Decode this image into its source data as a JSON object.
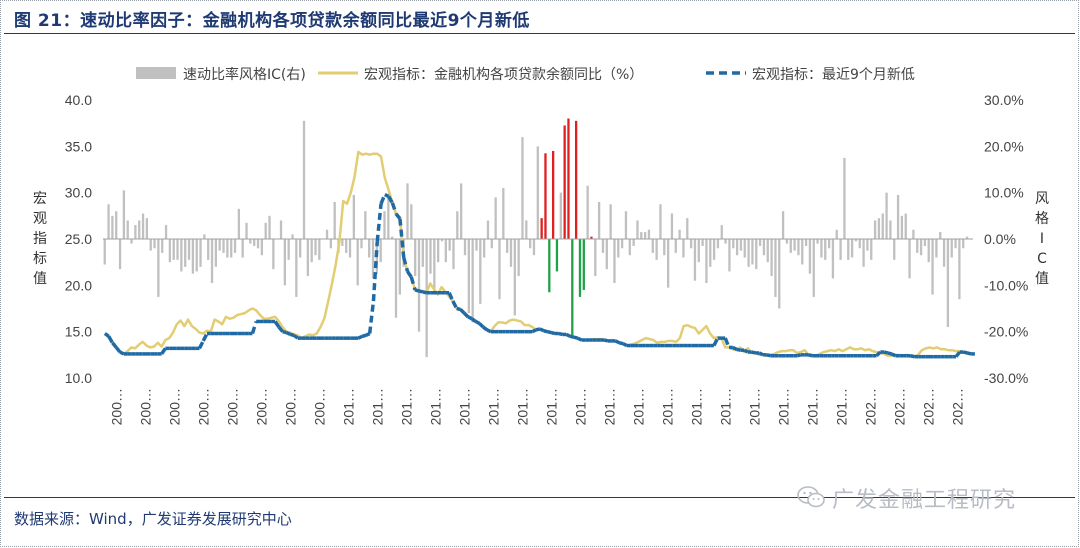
{
  "figure": {
    "title": "图 21：速动比率因子：金融机构各项贷款余额同比最近9个月新低",
    "source": "数据来源：Wind，广发证券发展研究中心",
    "watermark": "广发金融工程研究",
    "watermark_icon": "wechat-icon"
  },
  "chart_data": {
    "type": "bar+line",
    "legend_placement": "top",
    "grid": false,
    "left_axis": {
      "label": "宏观指标值",
      "min": 10.0,
      "max": 40.0,
      "ticks": [
        "10.0",
        "15.0",
        "20.0",
        "25.0",
        "30.0",
        "35.0",
        "40.0"
      ]
    },
    "right_axis": {
      "label": "风格IC值",
      "min": -30.0,
      "max": 30.0,
      "ticks": [
        "-30.0%",
        "-20.0%",
        "-10.0%",
        "0.0%",
        "10.0%",
        "20.0%",
        "30.0%"
      ]
    },
    "x_tick_labels": [
      "200…",
      "200…",
      "200…",
      "200…",
      "200…",
      "200…",
      "200…",
      "200…",
      "201…",
      "201…",
      "201…",
      "201…",
      "201…",
      "201…",
      "201…",
      "201…",
      "201…",
      "201…",
      "201…",
      "201…",
      "201…",
      "201…",
      "201…",
      "201…",
      "201…",
      "201…",
      "202…",
      "202…",
      "202…",
      "202…"
    ],
    "colors": {
      "ic_neutral": "#c0c0c0",
      "ic_positive": "#e02020",
      "ic_negative": "#22a04a",
      "macro_line": "#e2cd73",
      "low_line": "#1f6aa5"
    },
    "series": [
      {
        "name": "速动比率风格IC(右)",
        "kind": "bar",
        "axis": "right",
        "values": [
          -5.5,
          7.5,
          5.0,
          6.0,
          -6.5,
          10.5,
          4.0,
          -1.0,
          3.0,
          4.0,
          5.5,
          4.5,
          -2.5,
          -2.0,
          -12.5,
          -3.0,
          3.0,
          -5.0,
          -4.5,
          -4.5,
          -7.0,
          -6.0,
          -4.5,
          -7.5,
          -7.0,
          -6.0,
          1.0,
          -4.5,
          -9.5,
          -6.0,
          -2.5,
          -3.0,
          -4.0,
          -4.0,
          -3.0,
          6.5,
          -4.0,
          3.5,
          -1.0,
          -1.5,
          -2.0,
          -3.5,
          3.5,
          5.0,
          -6.5,
          0.0,
          4.0,
          -10.0,
          -4.5,
          1.0,
          -12.5,
          -4.0,
          25.5,
          -8.0,
          -5.0,
          -3.5,
          -4.5,
          0.0,
          2.0,
          -2.0,
          8.0,
          -3.0,
          -1.5,
          -3.0,
          -4.0,
          9.5,
          -10.0,
          -2.0,
          6.0,
          -4.0,
          -8.5,
          -7.5,
          -5.0,
          6.0,
          9.0,
          0.5,
          -17.0,
          -12.0,
          -6.0,
          12.0,
          7.5,
          -8.0,
          -20.0,
          -6.0,
          -25.5,
          -7.5,
          -12.0,
          -5.0,
          -0.5,
          -5.0,
          -2.5,
          -6.5,
          6.0,
          12.0,
          -3.5,
          -16.0,
          -18.0,
          -2.5,
          -14.0,
          -4.0,
          4.0,
          -2.0,
          9.0,
          -13.0,
          11.0,
          -3.0,
          -6.0,
          -16.5,
          -8.0,
          22.0,
          4.0,
          -2.0,
          -3.5,
          20.0,
          4.5,
          18.5,
          -11.5,
          19.0,
          -7.0,
          10.0,
          24.5,
          26.0,
          -21.0,
          25.5,
          -12.5,
          -11.0,
          11.5,
          0.5,
          -8.0,
          8.0,
          -3.0,
          -6.5,
          7.5,
          -9.5,
          -4.0,
          -2.0,
          6.0,
          -3.5,
          -1.5,
          4.0,
          1.5,
          1.5,
          2.0,
          -3.0,
          -4.5,
          7.5,
          -3.5,
          -10.5,
          5.5,
          -3.0,
          2.0,
          -4.0,
          4.5,
          -2.0,
          -9.0,
          -5.0,
          -1.5,
          -9.5,
          -6.0,
          -4.5,
          -2.0,
          3.0,
          -1.0,
          -7.0,
          -2.0,
          -3.5,
          -2.5,
          -4.0,
          -6.0,
          -5.5,
          -6.5,
          -1.5,
          -3.5,
          -5.0,
          -8.0,
          -12.5,
          -15.0,
          6.0,
          -1.0,
          -3.0,
          -2.5,
          -3.5,
          -5.5,
          -1.5,
          -7.5,
          -12.5,
          -1.0,
          -4.0,
          -4.5,
          -2.0,
          -8.5,
          2.0,
          -4.5,
          17.5,
          -4.5,
          -4.0,
          -0.5,
          -2.0,
          -6.0,
          -2.5,
          -4.5,
          4.0,
          4.5,
          5.5,
          10.0,
          4.0,
          -4.5,
          9.5,
          5.0,
          5.5,
          -8.5,
          2.0,
          -3.0,
          -3.5,
          -1.5,
          -5.0,
          -12.0,
          -4.0,
          1.5,
          -6.0,
          -19.0,
          -4.0,
          -2.0,
          -13.0,
          -2.0,
          0.5,
          0.0
        ]
      },
      {
        "name": "宏观指标：金融机构各项贷款余额同比（%）",
        "kind": "line",
        "axis": "left",
        "values": [
          14.8,
          14.5,
          13.8,
          13.3,
          12.8,
          12.6,
          12.9,
          13.3,
          13.2,
          13.6,
          13.9,
          13.5,
          13.3,
          13.4,
          13.8,
          13.4,
          14.1,
          14.3,
          14.9,
          15.8,
          16.2,
          15.6,
          16.3,
          15.6,
          15.3,
          14.9,
          14.8,
          15.1,
          15.0,
          16.3,
          16.1,
          15.8,
          16.6,
          16.4,
          16.5,
          16.8,
          16.9,
          17.0,
          17.3,
          17.5,
          17.3,
          16.8,
          16.4,
          16.4,
          16.5,
          16.6,
          16.1,
          15.5,
          15.0,
          14.9,
          14.7,
          14.6,
          14.3,
          14.5,
          14.7,
          14.6,
          14.8,
          15.5,
          16.4,
          18.2,
          20.1,
          22.2,
          24.7,
          29.1,
          28.8,
          30.0,
          31.7,
          34.4,
          34.1,
          34.2,
          34.1,
          34.2,
          34.2,
          33.9,
          31.6,
          30.3,
          28.9,
          27.7,
          27.2,
          23.0,
          21.5,
          20.9,
          19.5,
          19.4,
          19.3,
          19.2,
          20.2,
          19.6,
          19.0,
          19.8,
          19.3,
          18.8,
          18.3,
          17.5,
          17.4,
          17.0,
          16.6,
          16.4,
          16.1,
          15.9,
          15.5,
          15.2,
          15.0,
          15.6,
          16.0,
          16.0,
          15.9,
          16.2,
          16.3,
          16.2,
          16.1,
          15.7,
          15.7,
          15.5,
          15.2,
          15.3,
          15.1,
          15.0,
          14.9,
          14.8,
          14.8,
          14.7,
          14.7,
          14.5,
          14.4,
          14.3,
          14.1,
          14.1,
          14.1,
          14.2,
          14.2,
          14.2,
          14.1,
          14.0,
          14.1,
          14.0,
          13.8,
          13.7,
          13.5,
          13.6,
          13.7,
          13.9,
          14.1,
          14.3,
          14.2,
          14.1,
          13.8,
          13.9,
          13.9,
          14.0,
          14.0,
          13.9,
          14.3,
          15.6,
          15.7,
          15.5,
          15.4,
          14.8,
          15.2,
          15.6,
          14.8,
          14.3,
          14.4,
          14.3,
          13.3,
          13.3,
          13.1,
          13.0,
          13.3,
          12.8,
          13.2,
          12.7,
          12.7,
          12.5,
          12.5,
          12.4,
          12.5,
          12.6,
          12.8,
          12.9,
          12.9,
          13.0,
          13.0,
          12.7,
          12.8,
          13.0,
          12.5,
          12.5,
          12.4,
          12.6,
          12.8,
          12.9,
          13.0,
          12.9,
          13.1,
          12.9,
          13.1,
          13.3,
          13.1,
          13.1,
          13.2,
          13.0,
          13.1,
          12.9,
          12.8,
          12.7,
          12.6,
          12.4,
          12.4,
          12.5,
          12.5,
          12.4,
          12.5,
          12.3,
          12.3,
          12.5,
          13.0,
          13.2,
          13.3,
          13.2,
          13.3,
          13.1,
          13.1,
          13.0,
          13.0,
          12.9,
          12.9,
          12.8,
          12.6,
          12.6
        ]
      },
      {
        "name": "宏观指标：最近9个月新低",
        "kind": "line-dashed",
        "axis": "left",
        "values": [
          14.8,
          14.5,
          13.8,
          13.3,
          12.8,
          12.6,
          12.6,
          12.6,
          12.6,
          12.6,
          12.6,
          12.6,
          12.6,
          12.6,
          12.6,
          12.6,
          13.2,
          13.2,
          13.2,
          13.2,
          13.2,
          13.2,
          13.2,
          13.2,
          13.2,
          13.2,
          14.0,
          14.8,
          14.8,
          14.8,
          14.8,
          14.8,
          14.8,
          14.8,
          14.8,
          14.8,
          14.8,
          14.8,
          14.8,
          14.8,
          16.1,
          16.1,
          16.1,
          16.1,
          16.1,
          16.1,
          15.5,
          15.0,
          14.9,
          14.7,
          14.6,
          14.3,
          14.3,
          14.3,
          14.3,
          14.3,
          14.3,
          14.3,
          14.3,
          14.3,
          14.3,
          14.3,
          14.3,
          14.3,
          14.3,
          14.3,
          14.3,
          14.3,
          14.5,
          14.6,
          14.8,
          18.3,
          24.7,
          28.8,
          29.8,
          29.6,
          28.9,
          27.7,
          27.2,
          23.0,
          21.5,
          20.9,
          19.5,
          19.4,
          19.3,
          19.2,
          19.2,
          19.2,
          19.2,
          19.2,
          19.2,
          19.2,
          18.3,
          17.5,
          17.4,
          17.0,
          16.6,
          16.4,
          16.1,
          15.9,
          15.5,
          15.2,
          15.0,
          15.0,
          15.0,
          15.0,
          15.0,
          15.0,
          15.0,
          15.0,
          15.0,
          15.0,
          15.0,
          15.0,
          15.2,
          15.3,
          15.1,
          15.0,
          14.9,
          14.8,
          14.8,
          14.7,
          14.7,
          14.5,
          14.4,
          14.3,
          14.1,
          14.1,
          14.1,
          14.1,
          14.1,
          14.1,
          14.1,
          14.0,
          14.0,
          14.0,
          13.8,
          13.7,
          13.5,
          13.5,
          13.5,
          13.5,
          13.5,
          13.5,
          13.5,
          13.5,
          13.5,
          13.5,
          13.5,
          13.5,
          13.5,
          13.5,
          13.5,
          13.5,
          13.5,
          13.5,
          13.5,
          13.5,
          13.5,
          13.5,
          13.5,
          13.5,
          14.3,
          14.3,
          14.3,
          13.3,
          13.3,
          13.1,
          13.0,
          13.0,
          12.8,
          12.8,
          12.7,
          12.7,
          12.5,
          12.5,
          12.4,
          12.4,
          12.4,
          12.4,
          12.4,
          12.4,
          12.4,
          12.4,
          12.5,
          12.5,
          12.5,
          12.4,
          12.4,
          12.4,
          12.4,
          12.4,
          12.4,
          12.4,
          12.4,
          12.4,
          12.4,
          12.4,
          12.4,
          12.4,
          12.4,
          12.4,
          12.4,
          12.4,
          12.4,
          12.8,
          12.8,
          12.7,
          12.6,
          12.4,
          12.4,
          12.4,
          12.4,
          12.4,
          12.3,
          12.3,
          12.3,
          12.3,
          12.3,
          12.3,
          12.3,
          12.3,
          12.3,
          12.3,
          12.3,
          12.3,
          12.8,
          12.8,
          12.7,
          12.6,
          12.6
        ]
      }
    ]
  }
}
